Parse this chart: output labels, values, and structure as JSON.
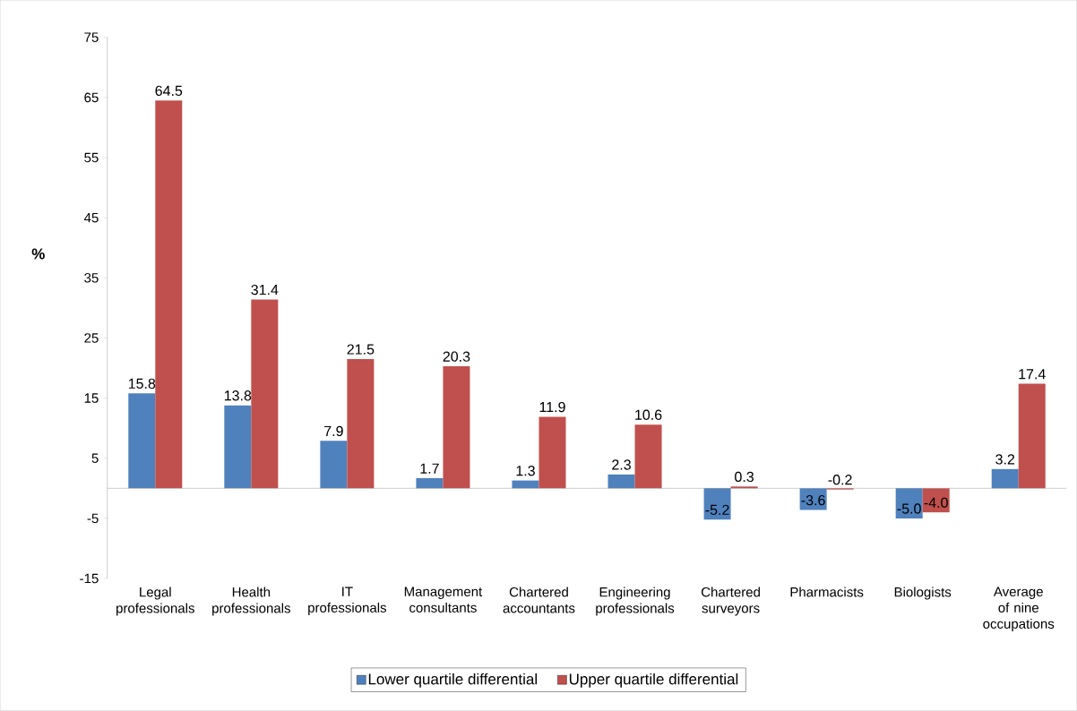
{
  "chart_data": {
    "type": "bar",
    "ylabel": "%",
    "categories": [
      "Legal professionals",
      "Health professionals",
      "IT professionals",
      "Management consultants",
      "Chartered accountants",
      "Engineering professionals",
      "Chartered surveyors",
      "Pharmacists",
      "Biologists",
      "Average of nine occupations"
    ],
    "series": [
      {
        "name": "Lower quartile differential",
        "color": "#4f81bd",
        "values": [
          15.8,
          13.8,
          7.9,
          1.7,
          1.3,
          2.3,
          -5.2,
          -3.6,
          -5.0,
          3.2
        ],
        "value_labels": [
          "15.8",
          "13.8",
          "7.9",
          "1.7",
          "1.3",
          "2.3",
          "-5.2",
          "-3.6",
          "-5.0",
          "3.2"
        ]
      },
      {
        "name": "Upper quartile differential",
        "color": "#c0504d",
        "values": [
          64.5,
          31.4,
          21.5,
          20.3,
          11.9,
          10.6,
          0.3,
          -0.2,
          -4.0,
          17.4
        ],
        "value_labels": [
          "64.5",
          "31.4",
          "21.5",
          "20.3",
          "11.9",
          "10.6",
          "0.3",
          "-0.2",
          "-4.0",
          "17.4"
        ]
      }
    ],
    "ylim": [
      -15,
      75
    ],
    "yticks": [
      -15,
      -5,
      5,
      15,
      25,
      35,
      45,
      55,
      65,
      75
    ],
    "grid": false,
    "legend": "bottom"
  }
}
